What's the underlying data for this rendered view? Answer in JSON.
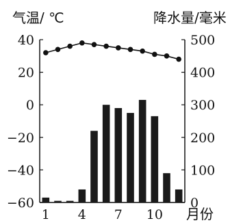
{
  "chart_data": {
    "type": "bar+line",
    "left_axis_label": "气温/ ℃",
    "right_axis_label": "降水量/毫米",
    "x_axis_suffix": "月份",
    "x_tick_labels": [
      "1",
      "4",
      "7",
      "10"
    ],
    "x_tick_months": [
      1,
      4,
      7,
      10
    ],
    "months": [
      1,
      2,
      3,
      4,
      5,
      6,
      7,
      8,
      9,
      10,
      11,
      12
    ],
    "temperature": {
      "unit": "℃",
      "values": [
        32,
        34,
        36,
        38,
        37,
        36,
        35,
        34,
        33,
        31,
        30,
        28
      ],
      "ylim": [
        -60,
        40
      ],
      "ticks": [
        40,
        20,
        0,
        -20,
        -40,
        -60
      ]
    },
    "precipitation": {
      "unit": "毫米",
      "values": [
        15,
        5,
        5,
        40,
        220,
        300,
        290,
        275,
        315,
        265,
        90,
        40
      ],
      "ylim": [
        0,
        500
      ],
      "ticks": [
        500,
        400,
        300,
        200,
        100,
        0
      ]
    }
  }
}
